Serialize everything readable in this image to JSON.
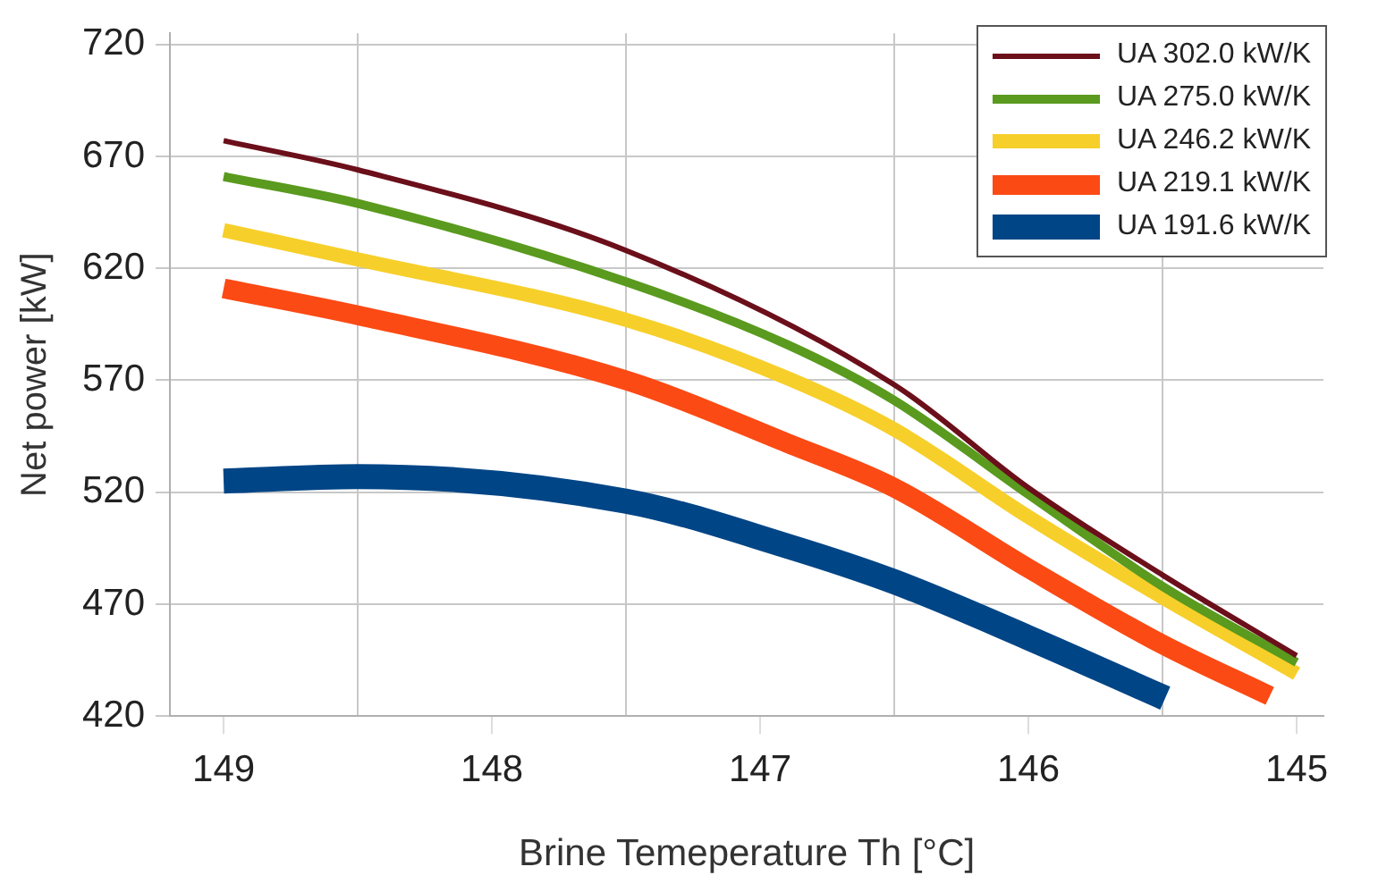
{
  "chart_data": {
    "type": "line",
    "xlabel": "Brine Temeperature Th [°C]",
    "ylabel": "Net power [kW]",
    "xlim": [
      149.2,
      144.9
    ],
    "xticks": [
      149,
      {
        "value": 148.5,
        "label": null
      },
      148,
      {
        "value": 147.5,
        "label": null
      },
      147,
      {
        "value": 146.5,
        "label": null
      },
      146,
      {
        "value": 145.5,
        "label": null
      },
      145
    ],
    "ylim": [
      420,
      725
    ],
    "yticks": [
      420,
      470,
      520,
      570,
      620,
      670,
      720
    ],
    "grid": true,
    "legend": "top right",
    "marker": "none",
    "line_style": "solid",
    "series": [
      {
        "name": "UA 302.0 kW/K",
        "color": "#6b0f1a",
        "x": [
          149,
          148.5,
          147.5,
          146.5,
          146,
          145.5,
          145
        ],
        "values": [
          677,
          664,
          628,
          568,
          522,
          483,
          447
        ]
      },
      {
        "name": "UA 275.0 kW/K",
        "color": "#5a9a1e",
        "x": [
          149,
          148.5,
          147.5,
          146.9,
          146.5,
          146,
          145.5,
          145
        ],
        "values": [
          661,
          649,
          614,
          586,
          561,
          519,
          478,
          444
        ]
      },
      {
        "name": "UA 246.2 kW/K",
        "color": "#f7cf2a",
        "x": [
          149,
          148.5,
          147.5,
          146.9,
          146.5,
          146,
          145.5,
          145
        ],
        "values": [
          637,
          624,
          597,
          571,
          548,
          509,
          473,
          439
        ]
      },
      {
        "name": "UA 219.1 kW/K",
        "color": "#fc4a14",
        "x": [
          149,
          148.5,
          147.5,
          146.9,
          146.5,
          146,
          145.5,
          145.1
        ],
        "values": [
          611,
          599,
          570,
          542,
          522,
          486,
          452,
          429
        ]
      },
      {
        "name": "UA 191.6 kW/K",
        "color": "#004586",
        "x": [
          149,
          148.5,
          147.5,
          146.9,
          146.5,
          146,
          145.49
        ],
        "values": [
          525,
          527,
          516,
          496,
          480,
          455,
          428
        ]
      }
    ]
  }
}
